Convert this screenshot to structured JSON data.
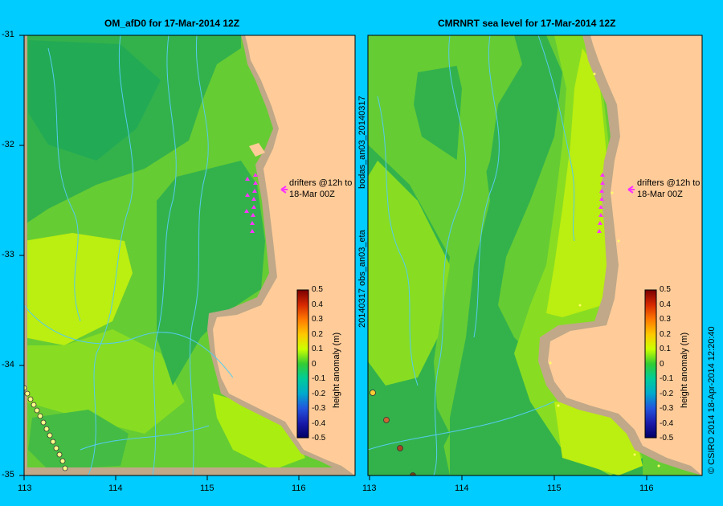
{
  "left_panel": {
    "title": "OM_afD0 for 17-Mar-2014 12Z",
    "annotation_line1": "drifters @12h to",
    "annotation_line2": "18-Mar 00Z"
  },
  "right_panel": {
    "title": "CMRNRT sea level  for 17-Mar-2014 12Z",
    "annotation_line1": "drifters @12h to",
    "annotation_line2": "18-Mar 00Z"
  },
  "side_labels": {
    "obs_label": "20140317 obs_an03_eta",
    "bodas_label": "bodas_an03_20140317",
    "credit": "© CSIRO 2014  18-Apr-2014 12:20:40"
  },
  "y_ticks": [
    "-31",
    "-32",
    "-33",
    "-34",
    "-35"
  ],
  "x_ticks_left": [
    "113",
    "114",
    "115",
    "116"
  ],
  "x_ticks_right": [
    "113",
    "114",
    "115",
    "116"
  ],
  "colorbar": {
    "label": "height anomaly (m)",
    "ticks": [
      "0.5",
      "0.4",
      "0.3",
      "0.2",
      "0.1",
      "0",
      "-0.1",
      "-0.2",
      "-0.3",
      "-0.4",
      "-0.5"
    ]
  },
  "colors": {
    "background": "#00ccff",
    "land": "#ffcc99",
    "coast_shelf": "#c0a888",
    "drifter": "#ff33ff"
  }
}
